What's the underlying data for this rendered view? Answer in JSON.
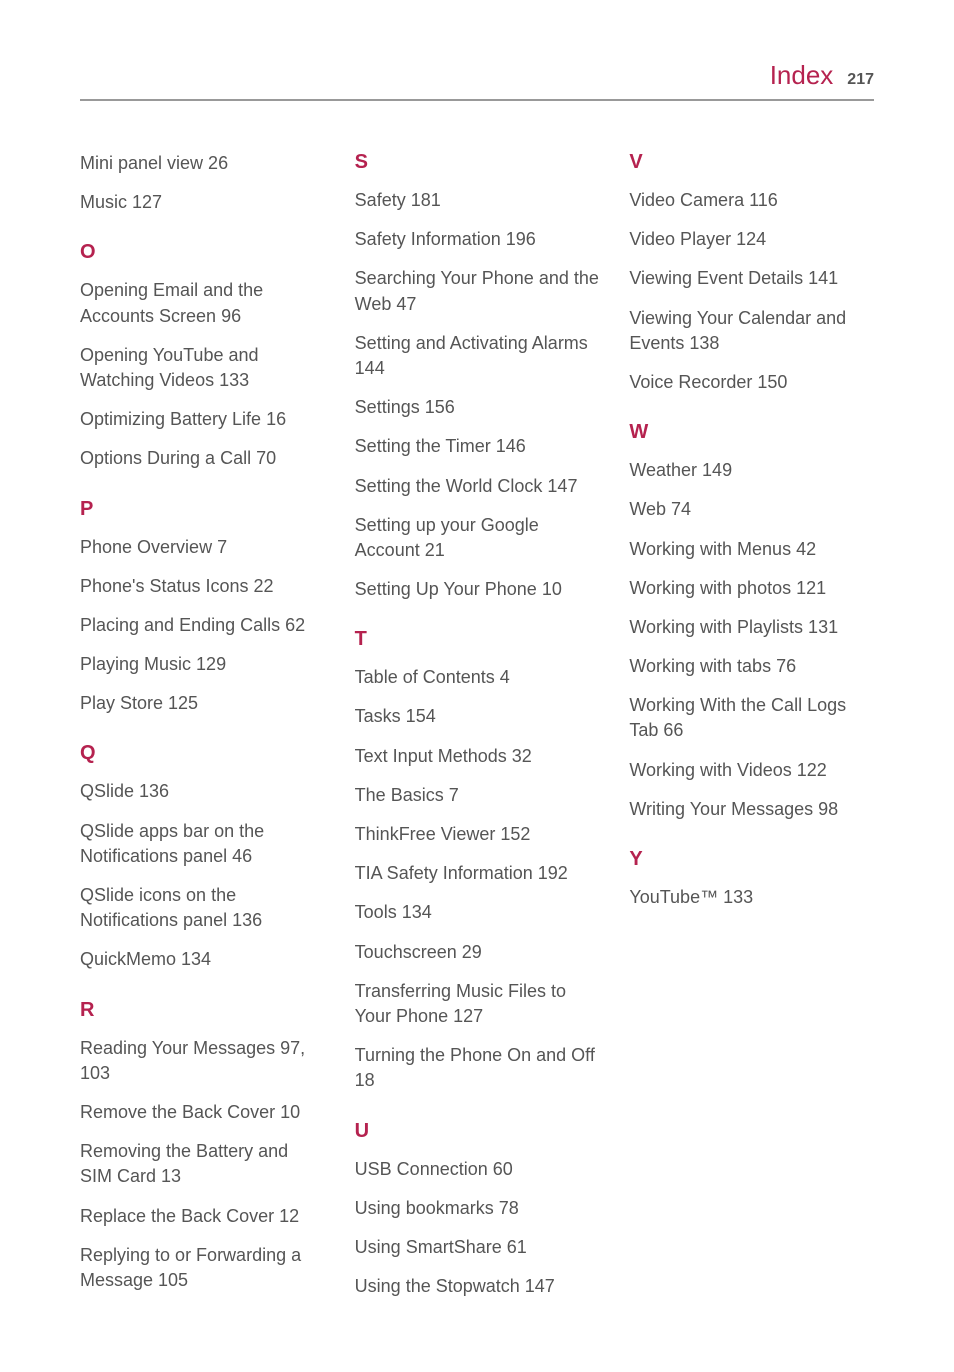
{
  "header": {
    "title": "Index",
    "page_number": "217"
  },
  "styles": {
    "accent_color": "#b5224f",
    "text_color": "#555",
    "border_color": "#999",
    "background_color": "#ffffff",
    "title_fontsize": 26,
    "letter_fontsize": 20,
    "entry_fontsize": 18,
    "page_fontsize": 16
  },
  "columns": [
    {
      "sections": [
        {
          "letter": null,
          "entries": [
            "Mini panel view  26",
            "Music  127"
          ]
        },
        {
          "letter": "O",
          "entries": [
            "Opening Email and the Accounts Screen  96",
            "Opening YouTube and Watching Videos  133",
            "Optimizing Battery Life  16",
            "Options During a Call  70"
          ]
        },
        {
          "letter": "P",
          "entries": [
            "Phone Overview  7",
            "Phone's Status Icons  22",
            "Placing and Ending Calls  62",
            "Playing Music  129",
            "Play Store  125"
          ]
        },
        {
          "letter": "Q",
          "entries": [
            "QSlide  136",
            "QSlide apps bar on the Notifications panel  46",
            "QSlide icons on the Notifications panel  136",
            "QuickMemo  134"
          ]
        },
        {
          "letter": "R",
          "entries": [
            "Reading Your Messages  97, 103",
            "Remove the Back Cover  10",
            "Removing the Battery and SIM Card  13",
            "Replace the Back Cover  12",
            "Replying to or Forwarding a Message  105"
          ]
        }
      ]
    },
    {
      "sections": [
        {
          "letter": "S",
          "entries": [
            "Safety  181",
            "Safety Information  196",
            "Searching Your Phone and the Web  47",
            "Setting and Activating Alarms  144",
            "Settings  156",
            "Setting the Timer  146",
            "Setting the World Clock  147",
            "Setting up your Google Account  21",
            "Setting Up Your Phone  10"
          ]
        },
        {
          "letter": "T",
          "entries": [
            "Table of Contents  4",
            "Tasks  154",
            "Text Input Methods  32",
            "The Basics  7",
            "ThinkFree Viewer  152",
            "TIA Safety Information  192",
            "Tools  134",
            "Touchscreen  29",
            "Transferring Music Files to Your Phone  127",
            "Turning the Phone On and Off  18"
          ]
        },
        {
          "letter": "U",
          "entries": [
            "USB Connection  60",
            "Using bookmarks  78",
            "Using SmartShare  61",
            "Using the Stopwatch  147"
          ]
        }
      ]
    },
    {
      "sections": [
        {
          "letter": "V",
          "entries": [
            "Video Camera  116",
            "Video Player  124",
            "Viewing Event Details  141",
            "Viewing Your Calendar and Events  138",
            "Voice Recorder  150"
          ]
        },
        {
          "letter": "W",
          "entries": [
            "Weather  149",
            "Web  74",
            "Working with Menus  42",
            "Working with photos  121",
            "Working with Playlists  131",
            "Working with tabs  76",
            "Working With the Call Logs Tab  66",
            "Working with Videos  122",
            "Writing Your Messages  98"
          ]
        },
        {
          "letter": "Y",
          "entries": [
            "YouTube™  133"
          ]
        }
      ]
    }
  ]
}
